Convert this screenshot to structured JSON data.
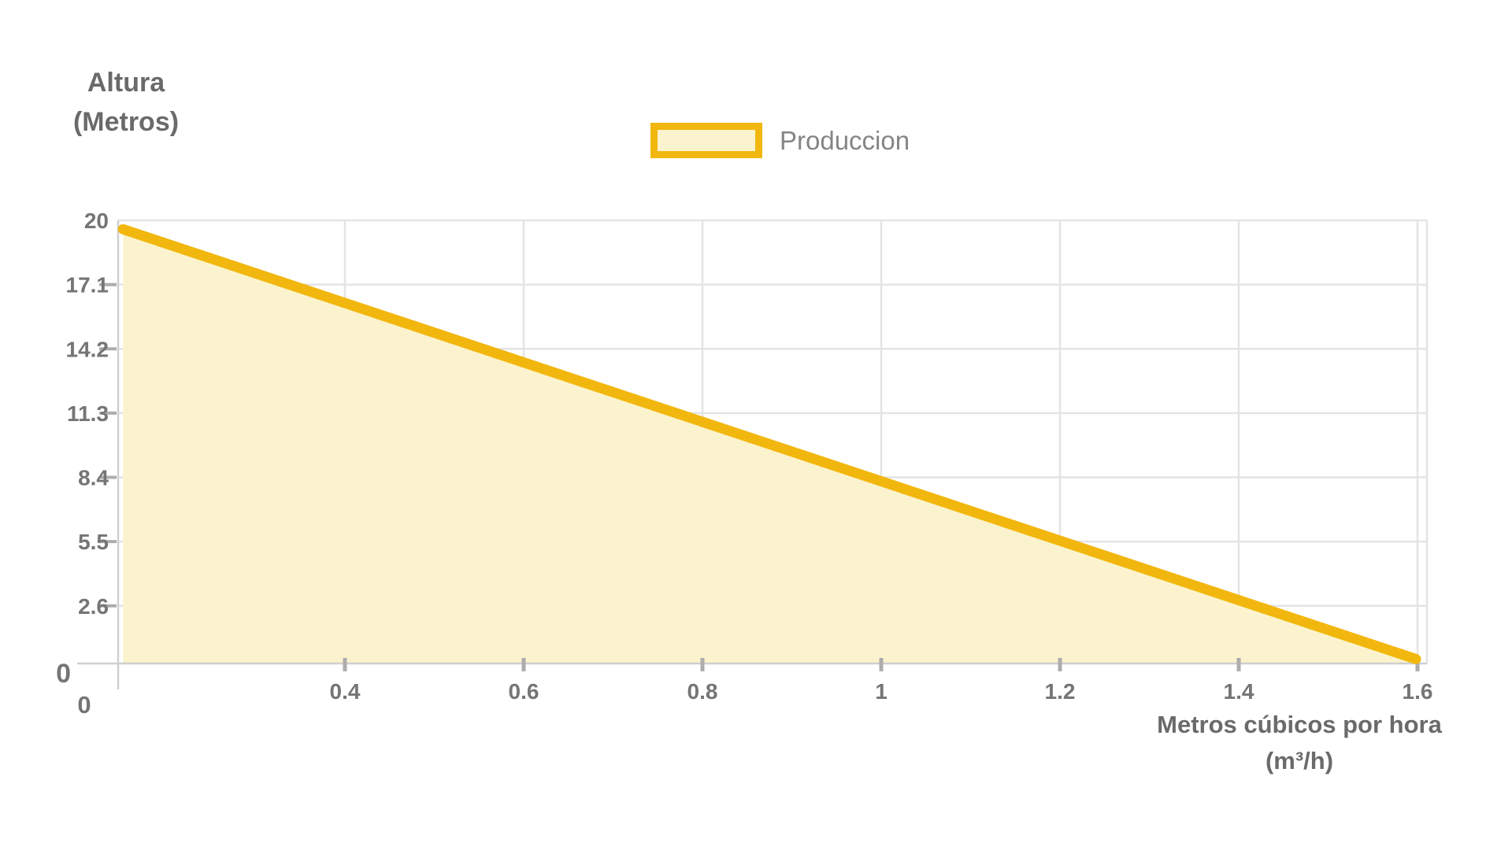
{
  "chart_data": {
    "type": "area",
    "title": "",
    "legend": {
      "label": "Produccion",
      "position": "top-center"
    },
    "x_axis": {
      "title_lines": [
        "Metros cúbicos por hora",
        "(m³/h)"
      ],
      "tick_labels": [
        "0.4",
        "0.6",
        "0.8",
        "1",
        "1.2",
        "1.4",
        "1.6"
      ],
      "ticks": [
        0.4,
        0.6,
        0.8,
        1,
        1.2,
        1.4,
        1.6
      ],
      "origin_label": "0",
      "range": [
        0.146,
        1.61
      ],
      "grid": true
    },
    "y_axis": {
      "title_lines": [
        "Altura",
        "(Metros)"
      ],
      "tick_labels": [
        "20",
        "17.1",
        "14.2",
        "11.3",
        "8.4",
        "5.5",
        "2.6"
      ],
      "ticks": [
        20,
        17.1,
        14.2,
        11.3,
        8.4,
        5.5,
        2.6
      ],
      "origin_label": "0",
      "range": [
        0,
        20
      ],
      "grid": true
    },
    "series": [
      {
        "name": "Produccion",
        "shape": "linear",
        "points": [
          {
            "x": 0.15,
            "y": 19.6
          },
          {
            "x": 1.6,
            "y": 0.2
          }
        ]
      }
    ],
    "colors": {
      "line": "#F2B70E",
      "fill": "#FBF3CD",
      "grid": "#E4E4E4",
      "axis": "#CFCFCF",
      "tick": "#ADADAD",
      "label_text": "#757575",
      "title_text": "#6A6A6A",
      "legend_text": "#858585"
    }
  }
}
